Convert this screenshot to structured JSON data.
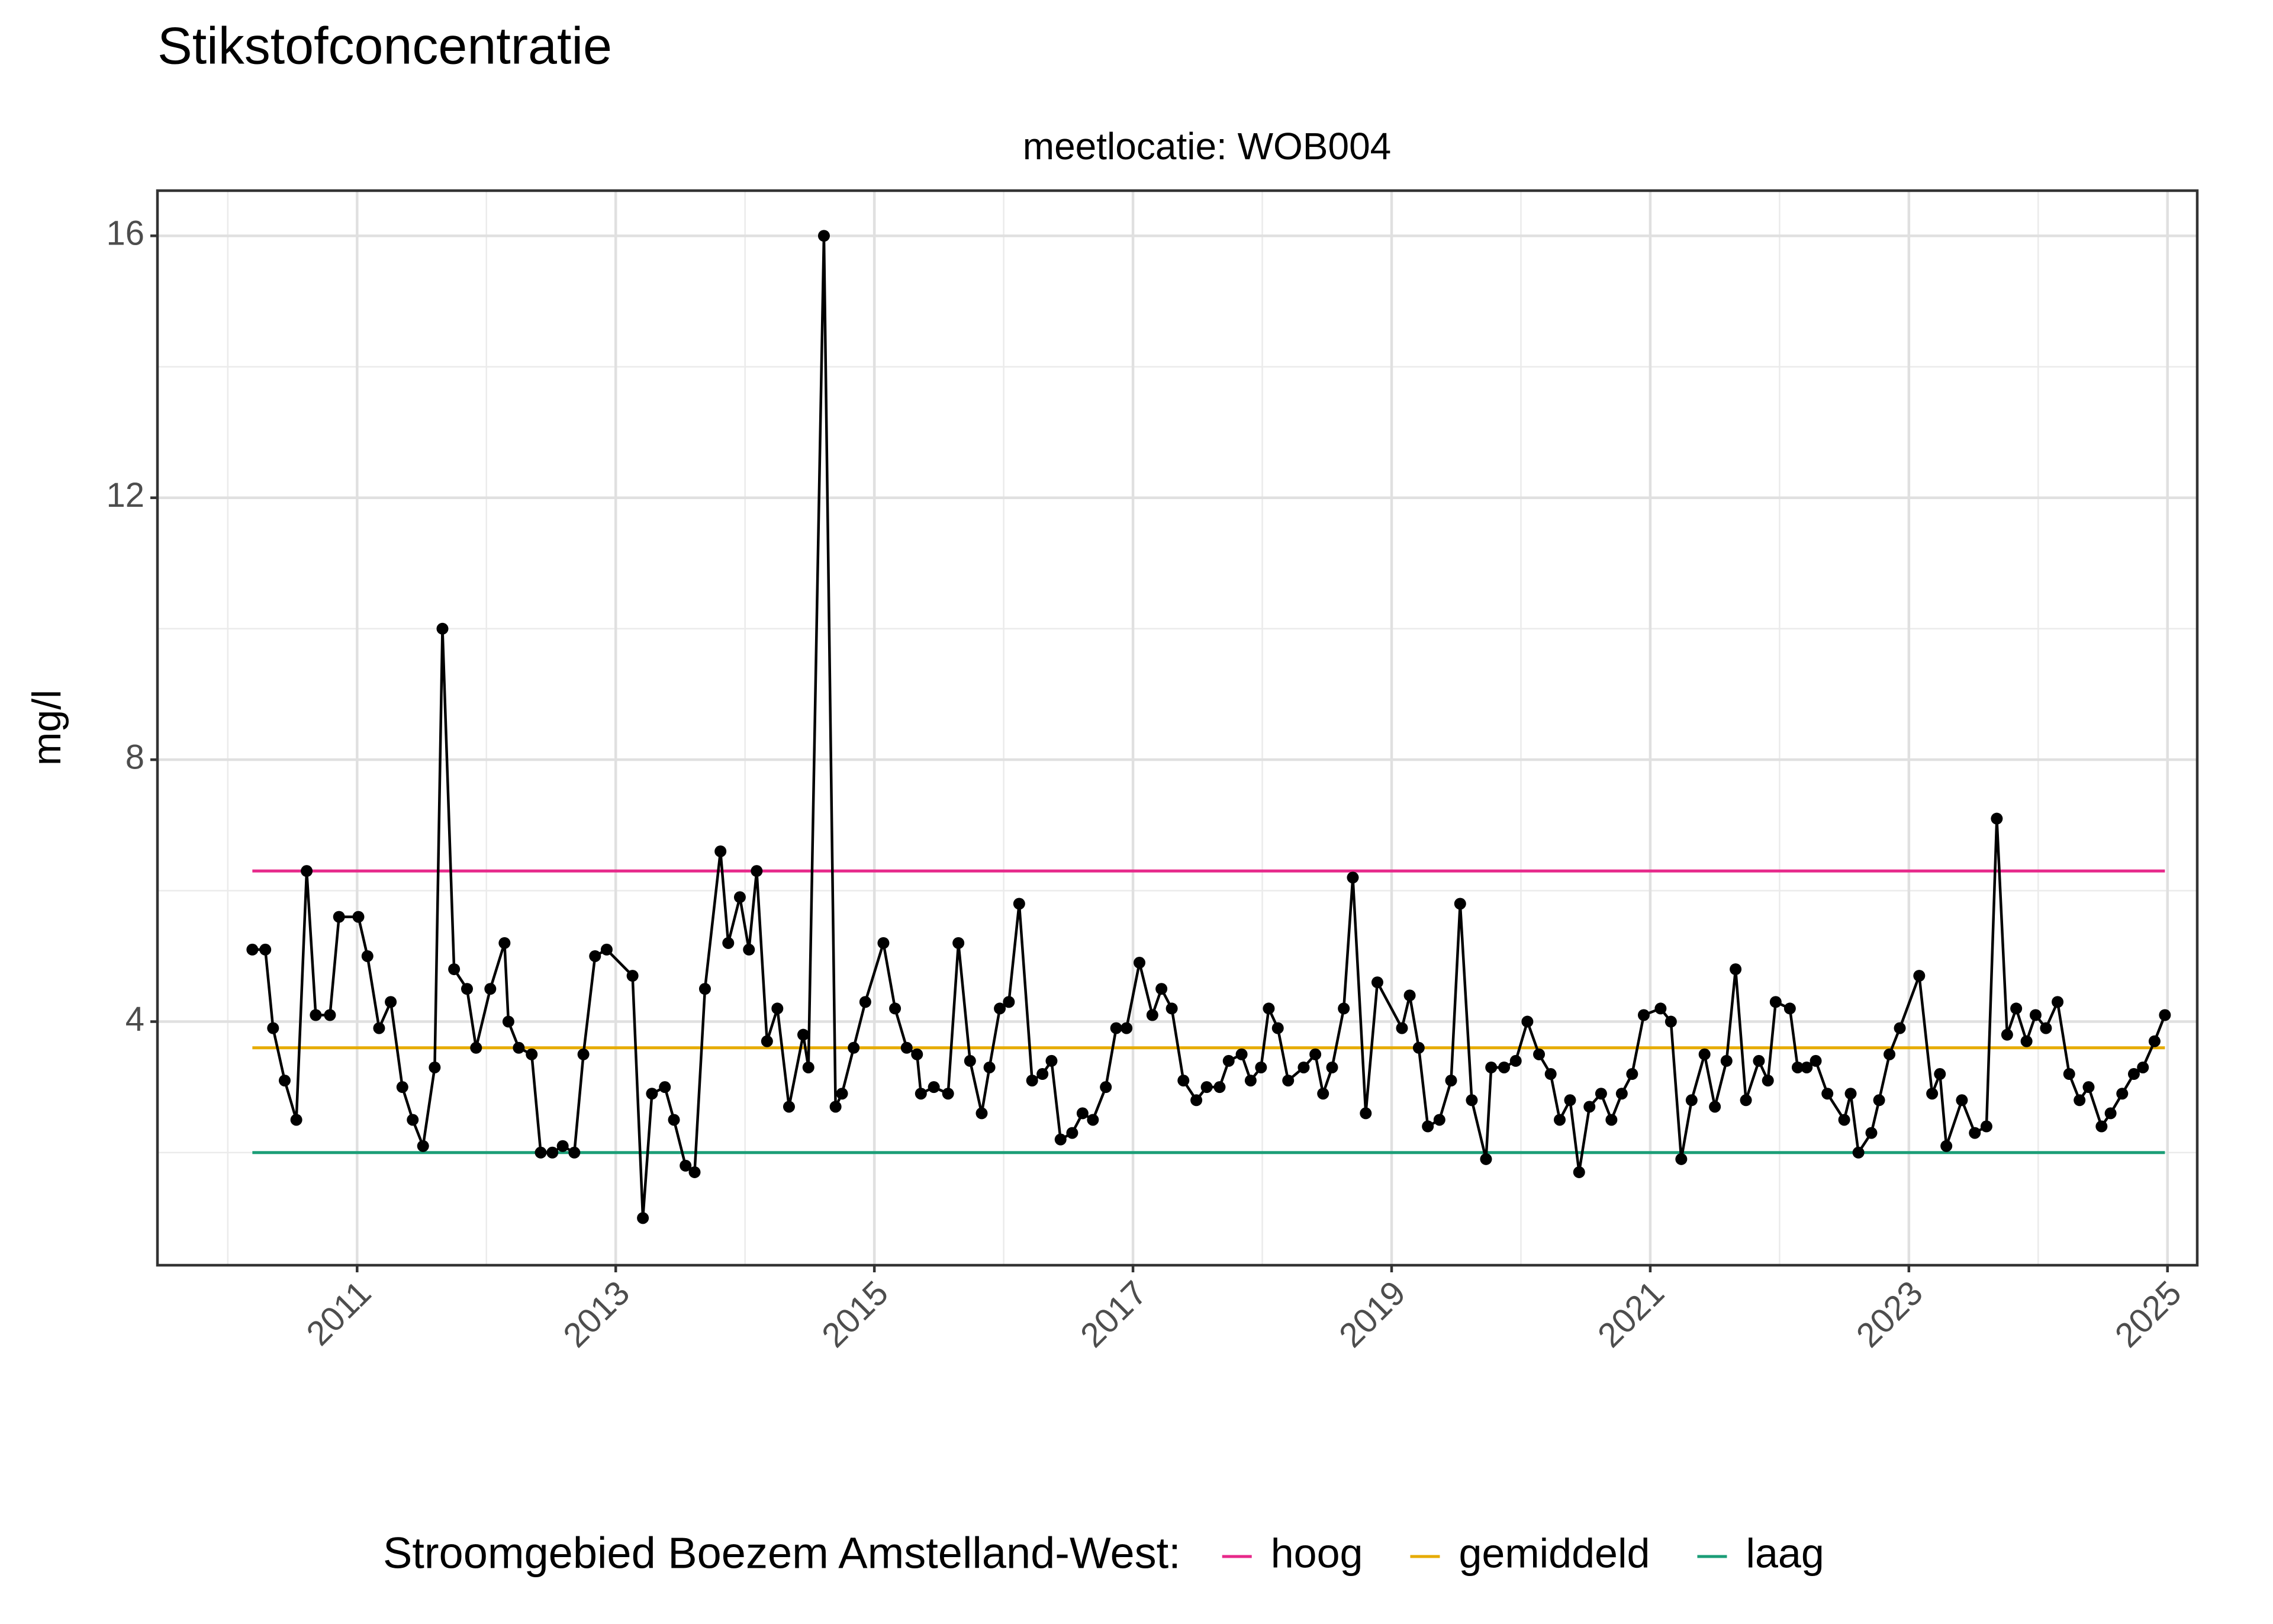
{
  "chart_data": {
    "type": "line",
    "title": "Stikstofconcentratie",
    "subtitle": "meetlocatie: WOB004",
    "y_label": "mg/l",
    "legend_title": "Stroomgebied Boezem Amstelland-West:",
    "legend": "bottom",
    "grid": true,
    "xlim": [
      2009.456,
      2025.23
    ],
    "xticks": [
      2011,
      2013,
      2015,
      2017,
      2019,
      2021,
      2023,
      2025
    ],
    "ylim": [
      0.28,
      16.69
    ],
    "yticks": [
      4,
      8,
      12,
      16
    ],
    "series": [
      {
        "color": "#000000",
        "markers": true,
        "x": [
          2010.19,
          2010.29,
          2010.35,
          2010.44,
          2010.53,
          2010.61,
          2010.68,
          2010.79,
          2010.86,
          2011.01,
          2011.08,
          2011.17,
          2011.26,
          2011.35,
          2011.43,
          2011.51,
          2011.6,
          2011.66,
          2011.75,
          2011.85,
          2011.92,
          2012.03,
          2012.14,
          2012.17,
          2012.25,
          2012.35,
          2012.42,
          2012.51,
          2012.59,
          2012.68,
          2012.75,
          2012.84,
          2012.93,
          2013.13,
          2013.21,
          2013.28,
          2013.38,
          2013.45,
          2013.54,
          2013.61,
          2013.69,
          2013.81,
          2013.87,
          2013.96,
          2014.03,
          2014.09,
          2014.17,
          2014.25,
          2014.34,
          2014.45,
          2014.49,
          2014.61,
          2014.7,
          2014.75,
          2014.84,
          2014.93,
          2015.07,
          2015.16,
          2015.25,
          2015.33,
          2015.36,
          2015.46,
          2015.57,
          2015.65,
          2015.74,
          2015.83,
          2015.89,
          2015.97,
          2016.04,
          2016.12,
          2016.22,
          2016.3,
          2016.37,
          2016.44,
          2016.53,
          2016.61,
          2016.69,
          2016.79,
          2016.87,
          2016.95,
          2017.05,
          2017.15,
          2017.22,
          2017.3,
          2017.39,
          2017.49,
          2017.57,
          2017.67,
          2017.74,
          2017.84,
          2017.91,
          2017.99,
          2018.05,
          2018.12,
          2018.2,
          2018.32,
          2018.41,
          2018.47,
          2018.54,
          2018.63,
          2018.7,
          2018.8,
          2018.89,
          2019.08,
          2019.14,
          2019.21,
          2019.28,
          2019.37,
          2019.46,
          2019.53,
          2019.62,
          2019.73,
          2019.77,
          2019.87,
          2019.96,
          2020.05,
          2020.14,
          2020.23,
          2020.3,
          2020.38,
          2020.45,
          2020.53,
          2020.62,
          2020.7,
          2020.78,
          2020.86,
          2020.95,
          2021.08,
          2021.16,
          2021.24,
          2021.32,
          2021.42,
          2021.5,
          2021.59,
          2021.66,
          2021.74,
          2021.84,
          2021.91,
          2021.97,
          2022.08,
          2022.14,
          2022.21,
          2022.28,
          2022.37,
          2022.5,
          2022.55,
          2022.61,
          2022.71,
          2022.77,
          2022.85,
          2022.93,
          2023.08,
          2023.18,
          2023.24,
          2023.29,
          2023.41,
          2023.51,
          2023.6,
          2023.68,
          2023.76,
          2023.83,
          2023.91,
          2023.98,
          2024.06,
          2024.15,
          2024.24,
          2024.32,
          2024.39,
          2024.49,
          2024.56,
          2024.65,
          2024.74,
          2024.81,
          2024.9,
          2024.98
        ],
        "values": [
          5.1,
          5.1,
          3.9,
          3.1,
          2.5,
          6.3,
          4.1,
          4.1,
          5.6,
          5.6,
          5.0,
          3.9,
          4.3,
          3.0,
          2.5,
          2.1,
          3.3,
          10.0,
          4.8,
          4.5,
          3.6,
          4.5,
          5.2,
          4.0,
          3.6,
          3.5,
          2.0,
          2.0,
          2.1,
          2.0,
          3.5,
          5.0,
          5.1,
          4.7,
          1.0,
          2.9,
          3.0,
          2.5,
          1.8,
          1.7,
          4.5,
          6.6,
          5.2,
          5.9,
          5.1,
          6.3,
          3.7,
          4.2,
          2.7,
          3.8,
          3.3,
          16.0,
          2.7,
          2.9,
          3.6,
          4.3,
          5.2,
          4.2,
          3.6,
          3.5,
          2.9,
          3.0,
          2.9,
          5.2,
          3.4,
          2.6,
          3.3,
          4.2,
          4.3,
          5.8,
          3.1,
          3.2,
          3.4,
          2.2,
          2.3,
          2.6,
          2.5,
          3.0,
          3.9,
          3.9,
          4.9,
          4.1,
          4.5,
          4.2,
          3.1,
          2.8,
          3.0,
          3.0,
          3.4,
          3.5,
          3.1,
          3.3,
          4.2,
          3.9,
          3.1,
          3.3,
          3.5,
          2.9,
          3.3,
          4.2,
          6.2,
          2.6,
          4.6,
          3.9,
          4.4,
          3.6,
          2.4,
          2.5,
          3.1,
          5.8,
          2.8,
          1.9,
          3.3,
          3.3,
          3.4,
          4.0,
          3.5,
          3.2,
          2.5,
          2.8,
          1.7,
          2.7,
          2.9,
          2.5,
          2.9,
          3.2,
          4.1,
          4.2,
          4.0,
          1.9,
          2.8,
          3.5,
          2.7,
          3.4,
          4.8,
          2.8,
          3.4,
          3.1,
          4.3,
          4.2,
          3.3,
          3.3,
          3.4,
          2.9,
          2.5,
          2.9,
          2.0,
          2.3,
          2.8,
          3.5,
          3.9,
          4.7,
          2.9,
          3.2,
          2.1,
          2.8,
          2.3,
          2.4,
          7.1,
          3.8,
          4.2,
          3.7,
          4.1,
          3.9,
          4.3,
          3.2,
          2.8,
          3.0,
          2.4,
          2.6,
          2.9,
          3.2,
          3.3,
          3.7,
          4.1
        ]
      },
      {
        "name": "hoog",
        "color": "#e7298a",
        "x": [
          2010.19,
          2024.98
        ],
        "values": [
          6.3,
          6.3
        ]
      },
      {
        "name": "gemiddeld",
        "color": "#e6ab02",
        "x": [
          2010.19,
          2024.98
        ],
        "values": [
          3.6,
          3.6
        ]
      },
      {
        "name": "laag",
        "color": "#1b9e77",
        "x": [
          2010.19,
          2024.98
        ],
        "values": [
          2.0,
          2.0
        ]
      }
    ]
  }
}
